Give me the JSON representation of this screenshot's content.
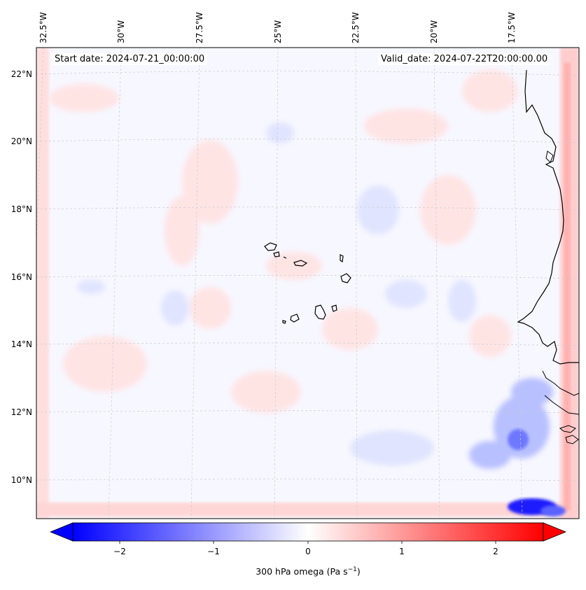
{
  "header": {
    "start_date": "Start date: 2024-07-21_00:00:00",
    "valid_date": "Valid_date: 2024-07-22T20:00:00.00"
  },
  "map": {
    "longitude_labels": [
      "32.5°W",
      "30°W",
      "27.5°W",
      "25°W",
      "22.5°W",
      "20°W",
      "17.5°W"
    ],
    "latitude_labels": [
      "22°N",
      "20°N",
      "18°N",
      "16°N",
      "14°N",
      "12°N",
      "10°N"
    ],
    "field": "300 hPa omega",
    "colors": {
      "negative": "#0000ff",
      "zero": "#ffffff",
      "positive": "#ff0000",
      "coastline": "#000000",
      "gridline": "#cccccc"
    }
  },
  "colorbar": {
    "label_text": "300 hPa omega (Pa s",
    "label_exponent": "−1",
    "label_close": ")",
    "ticks": [
      "−2",
      "−1",
      "0",
      "1",
      "2"
    ],
    "range": [
      -2.6,
      2.6
    ]
  }
}
